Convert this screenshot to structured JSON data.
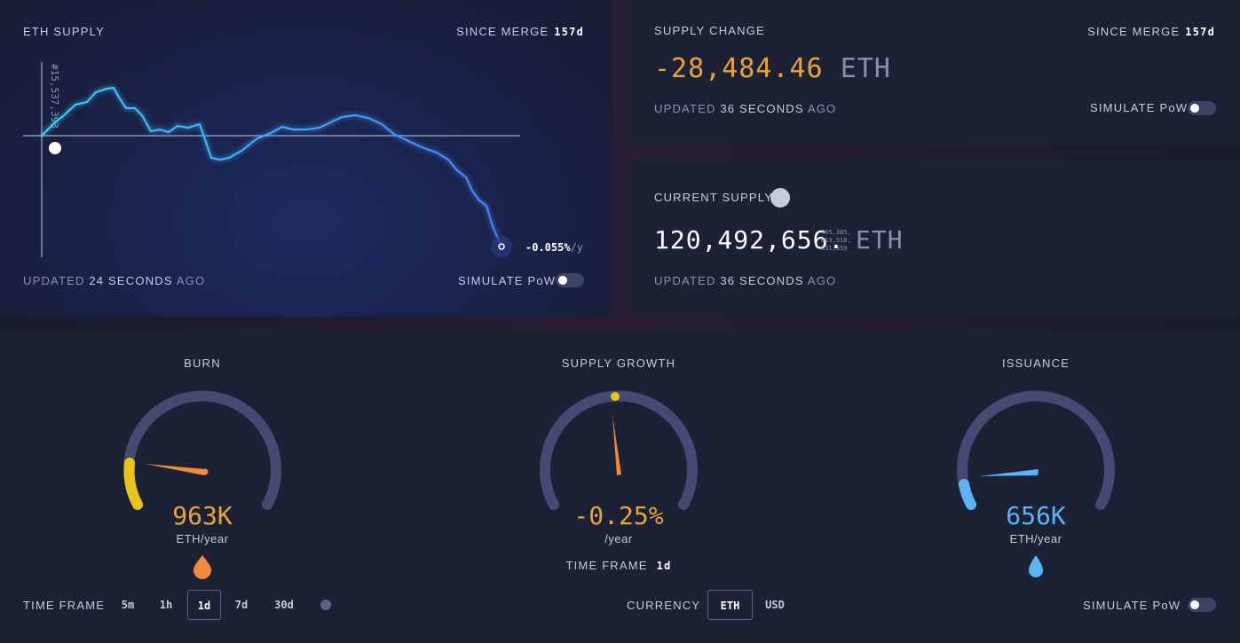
{
  "eth_supply": {
    "title": "ETH SUPPLY",
    "since_label": "SINCE MERGE",
    "since_value": "157d",
    "block_label": "#15,537,393",
    "rate": "-0.055%",
    "rate_unit": "/y",
    "updated_prefix": "UPDATED",
    "updated_value": "24 SECONDS",
    "updated_suffix": "AGO",
    "simulate": "SIMULATE PoW"
  },
  "supply_change": {
    "title": "SUPPLY CHANGE",
    "since_label": "SINCE MERGE",
    "since_value": "157d",
    "value": "-28,484.46",
    "unit": "ETH",
    "updated_prefix": "UPDATED",
    "updated_value": "36 SECONDS",
    "updated_suffix": "AGO",
    "simulate": "SIMULATE PoW"
  },
  "current_supply": {
    "title": "CURRENT SUPPLY",
    "value": "120,492,656.",
    "decimals": [
      "465,385,",
      "813,918,",
      "031,159"
    ],
    "unit": "ETH",
    "updated_prefix": "UPDATED",
    "updated_value": "36 SECONDS",
    "updated_suffix": "AGO"
  },
  "gauges": [
    {
      "title": "BURN",
      "value": "963K",
      "unit": "ETH/year"
    },
    {
      "title": "SUPPLY GROWTH",
      "value": "-0.25%",
      "unit": "/year",
      "time_frame_label": "TIME FRAME",
      "time_frame_value": "1d"
    },
    {
      "title": "ISSUANCE",
      "value": "656K",
      "unit": "ETH/year"
    }
  ],
  "controls": {
    "time_frame_label": "TIME FRAME",
    "time_frames": [
      "5m",
      "1h",
      "1d",
      "7d",
      "30d"
    ],
    "currency_label": "CURRENCY",
    "currencies": [
      "ETH",
      "USD"
    ],
    "simulate": "SIMULATE PoW"
  }
}
